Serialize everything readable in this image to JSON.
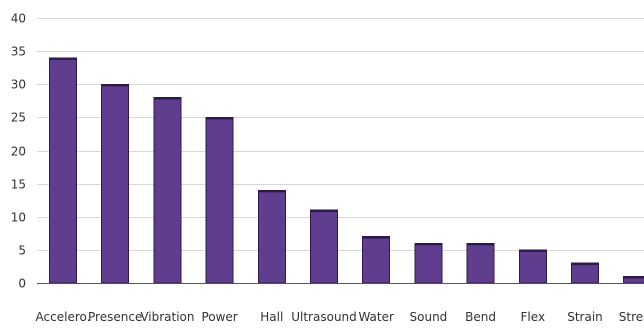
{
  "chart_data": {
    "type": "bar",
    "title": "",
    "xlabel": "",
    "ylabel": "",
    "categories": [
      "Accelero.",
      "Presence",
      "Vibration",
      "Power",
      "Hall",
      "Ultrasound",
      "Water",
      "Sound",
      "Bend",
      "Flex",
      "Strain",
      "Stress"
    ],
    "values": [
      34,
      30,
      28,
      25,
      14,
      11,
      7,
      6,
      6,
      5,
      3,
      1
    ],
    "ylim": [
      0,
      40
    ],
    "yticks": [
      0,
      5,
      10,
      15,
      20,
      25,
      30,
      35,
      40
    ],
    "grid": true,
    "legend": "none",
    "colors": {
      "bar_fill": "#5f3d8f",
      "bar_edge": "#2d1a4a",
      "grid": "#d8d8d8"
    }
  }
}
